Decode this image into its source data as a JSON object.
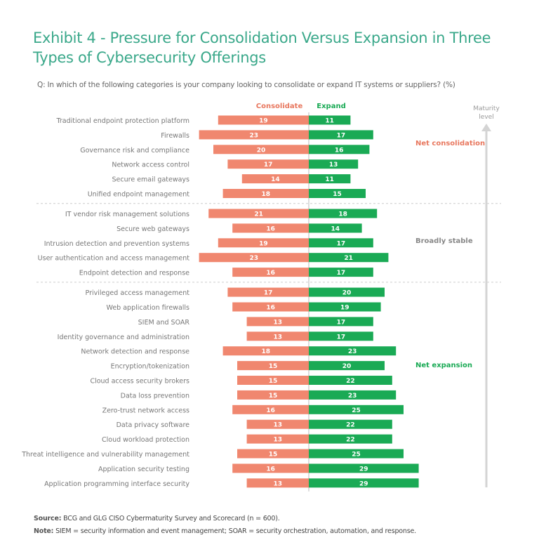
{
  "header": {
    "title": "Exhibit 4 - Pressure for Consolidation Versus Expansion in Three Types of Cybersecurity Offerings",
    "question": "Q: In which of the following categories is your company looking to consolidate or expand IT systems or suppliers? (%)"
  },
  "colors": {
    "consolidate": "#f0876f",
    "expand": "#1aaa55",
    "consolidate_label": "#e8785f",
    "expand_label": "#1aaa55",
    "stable_label": "#888888"
  },
  "chart_data": {
    "type": "bar",
    "subtype": "diverging-horizontal",
    "title": "Pressure for Consolidation Versus Expansion in Three Types of Cybersecurity Offerings",
    "unit": "%",
    "series": [
      {
        "name": "Consolidate",
        "values": [
          19,
          23,
          20,
          17,
          14,
          18,
          21,
          16,
          19,
          23,
          16,
          17,
          16,
          13,
          13,
          18,
          15,
          15,
          15,
          16,
          13,
          13,
          15,
          16,
          13
        ]
      },
      {
        "name": "Expand",
        "values": [
          11,
          17,
          16,
          13,
          11,
          15,
          18,
          14,
          17,
          21,
          17,
          20,
          19,
          17,
          17,
          23,
          20,
          22,
          23,
          25,
          22,
          22,
          25,
          29,
          29
        ]
      }
    ],
    "categories": [
      "Traditional endpoint protection platform",
      "Firewalls",
      "Governance risk and compliance",
      "Network access control",
      "Secure email gateways",
      "Unified endpoint management",
      "IT vendor risk management solutions",
      "Secure web gateways",
      "Intrusion detection and prevention systems",
      "User authentication and access management",
      "Endpoint detection and response",
      "Privileged access management",
      "Web application firewalls",
      "SIEM and SOAR",
      "Identity governance and administration",
      "Network detection and response",
      "Encryption/tokenization",
      "Cloud access security brokers",
      "Data loss prevention",
      "Zero-trust network access",
      "Data privacy software",
      "Cloud workload protection",
      "Threat intelligence and vulnerability management",
      "Application security testing",
      "Application programming interface security"
    ],
    "groups": [
      {
        "label": "Net consolidation",
        "start": 0,
        "end": 5
      },
      {
        "label": "Broadly stable",
        "start": 6,
        "end": 10
      },
      {
        "label": "Net expansion",
        "start": 11,
        "end": 24
      }
    ],
    "legend": {
      "consolidate": "Consolidate",
      "expand": "Expand"
    },
    "axis_annotation": "Maturity level"
  },
  "footer": {
    "source_label": "Source:",
    "source_text": " BCG and GLG CISO Cybermaturity Survey and Scorecard (n = 600).",
    "note_label": "Note:",
    "note_text": " SIEM = security information and event management; SOAR = security orchestration, automation, and response."
  }
}
